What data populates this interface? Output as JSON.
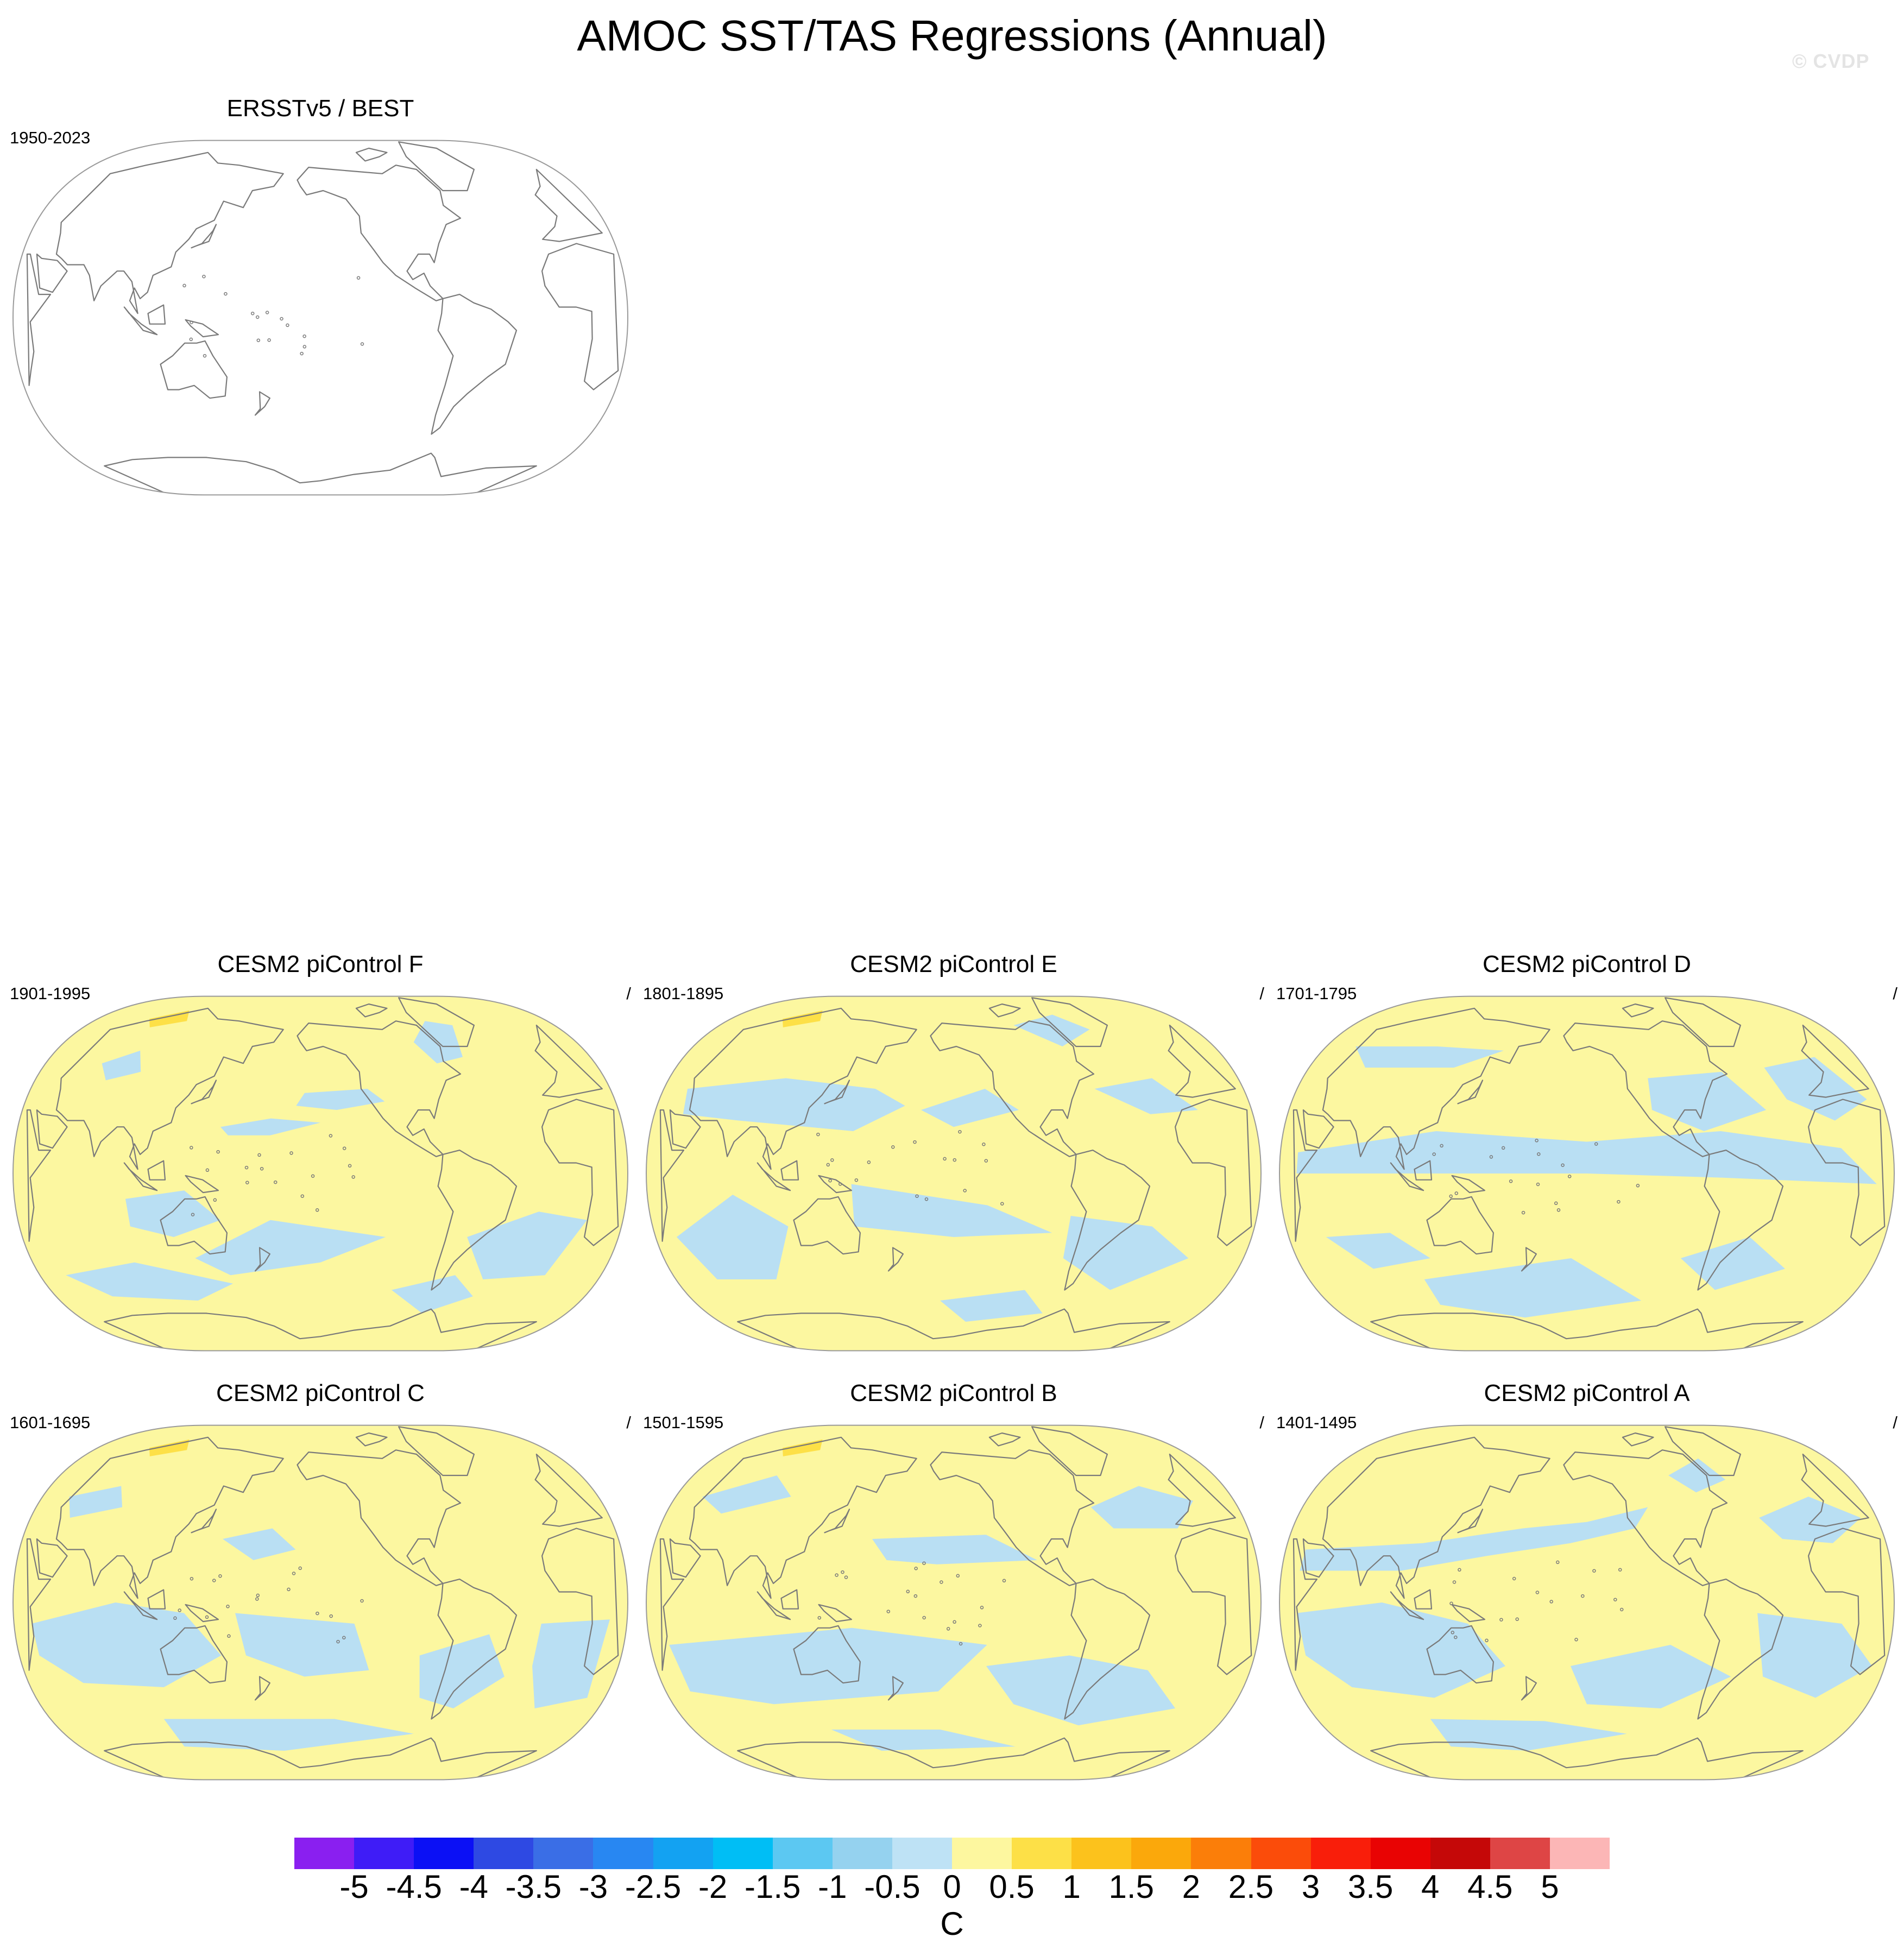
{
  "title": "AMOC SST/TAS Regressions (Annual)",
  "watermark": "© CVDP",
  "colors": {
    "positive_fill": "#fcf7a0",
    "negative_fill": "#b9dff3",
    "warm_anomaly": "#fde047",
    "coastline": "#7a7a7a",
    "frame": "#9a9a9a"
  },
  "panels": [
    {
      "title": "ERSSTv5 / BEST",
      "period": "1950-2023",
      "slash": "",
      "filled": false
    },
    {
      "title": "CESM2 piControl F",
      "period": "1901-1995",
      "slash": "/",
      "filled": true,
      "variant": 0
    },
    {
      "title": "CESM2 piControl E",
      "period": "1801-1895",
      "slash": "/",
      "filled": true,
      "variant": 1
    },
    {
      "title": "CESM2 piControl D",
      "period": "1701-1795",
      "slash": "/",
      "filled": true,
      "variant": 2
    },
    {
      "title": "CESM2 piControl C",
      "period": "1601-1695",
      "slash": "/",
      "filled": true,
      "variant": 3
    },
    {
      "title": "CESM2 piControl B",
      "period": "1501-1595",
      "slash": "/",
      "filled": true,
      "variant": 4
    },
    {
      "title": "CESM2 piControl A",
      "period": "1401-1495",
      "slash": "/",
      "filled": true,
      "variant": 5
    }
  ],
  "colorbar": {
    "colors": [
      "#8a1ff0",
      "#3f1cf7",
      "#0b10f5",
      "#2e49e3",
      "#3a6ee6",
      "#2887f2",
      "#13a2f2",
      "#00bef5",
      "#5cc8f2",
      "#95d2ef",
      "#bee2f5",
      "#fdf79f",
      "#fde047",
      "#fcc21c",
      "#fba80b",
      "#fb7e09",
      "#fb4c0a",
      "#f91e0a",
      "#e90303",
      "#c50808",
      "#de4545",
      "#fcb6b6"
    ],
    "labels": [
      "-5",
      "-4.5",
      "-4",
      "-3.5",
      "-3",
      "-2.5",
      "-2",
      "-1.5",
      "-1",
      "-0.5",
      "0",
      "0.5",
      "1",
      "1.5",
      "2",
      "2.5",
      "3",
      "3.5",
      "4",
      "4.5",
      "5"
    ],
    "units": "C"
  }
}
